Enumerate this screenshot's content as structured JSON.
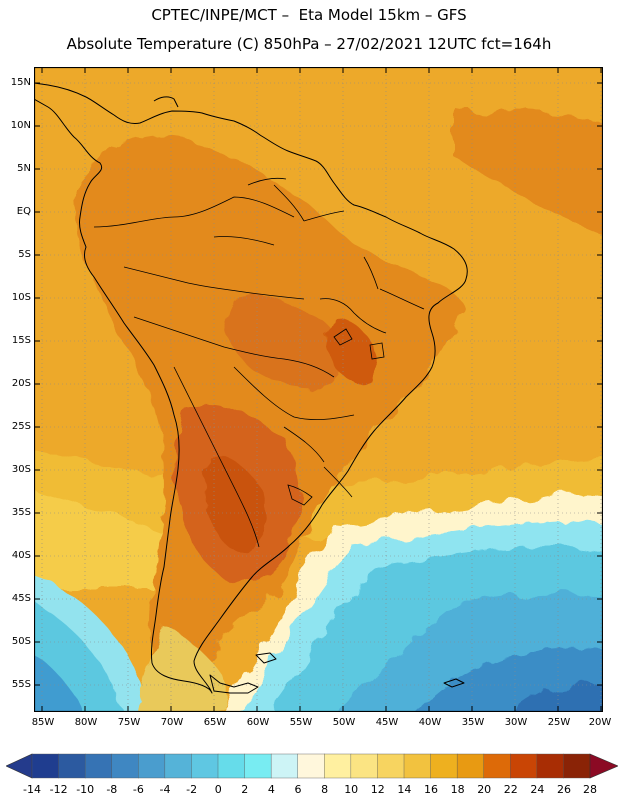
{
  "header": {
    "line1": "CPTEC/INPE/MCT –  Eta Model 15km – GFS",
    "line2": "Absolute Temperature (C) 850hPa – 27/02/2021 12UTC fct=164h"
  },
  "map": {
    "lat_labels": [
      "15N",
      "10N",
      "5N",
      "EQ",
      "5S",
      "10S",
      "15S",
      "20S",
      "25S",
      "30S",
      "35S",
      "40S",
      "45S",
      "50S",
      "55S"
    ],
    "lon_labels": [
      "85W",
      "80W",
      "75W",
      "70W",
      "65W",
      "60W",
      "55W",
      "50W",
      "45W",
      "40W",
      "35W",
      "30W",
      "25W",
      "20W"
    ]
  },
  "colorbar": {
    "labels": [
      "-14",
      "-12",
      "-10",
      "-8",
      "-6",
      "-4",
      "-2",
      "0",
      "2",
      "4",
      "6",
      "8",
      "10",
      "12",
      "14",
      "16",
      "18",
      "20",
      "22",
      "24",
      "26",
      "28"
    ],
    "colors": [
      "#1f3d8f",
      "#2c5aa0",
      "#3673b4",
      "#3f87c2",
      "#4a9dce",
      "#55b3d8",
      "#5fc7e2",
      "#66dcea",
      "#78ecf2",
      "#cdf4f6",
      "#fff7dc",
      "#fff0a0",
      "#fbe483",
      "#f7d460",
      "#f2c23f",
      "#eeb01f",
      "#e89a12",
      "#dd6a08",
      "#c94505",
      "#a82d04",
      "#8a2306"
    ],
    "under_color": "#243b8c",
    "over_color": "#8b0a24"
  },
  "colors": {
    "ocean_warm": "#eda92a",
    "land_warm": "#e58f20",
    "hot_core": "#cf5a0c",
    "cold_ocean": "#5cc8e0",
    "coast_line": "#000000"
  }
}
